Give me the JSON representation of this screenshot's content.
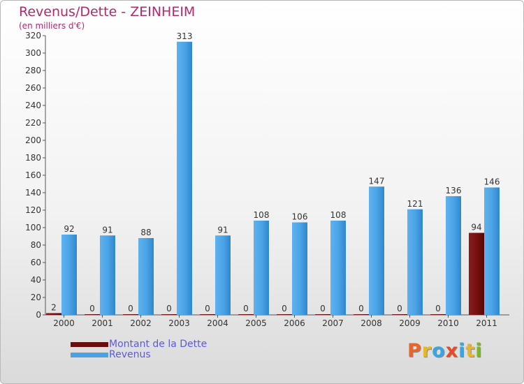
{
  "header": {
    "title": "Revenus/Dette - ZEINHEIM",
    "subtitle": "(en milliers d'€)"
  },
  "legend": {
    "items": [
      {
        "label": "Montant de la Dette",
        "color": "#7a1010"
      },
      {
        "label": "Revenus",
        "color": "#4aa2e6"
      }
    ]
  },
  "logo": {
    "text": "Proxiti",
    "colors": [
      "#e8662a",
      "#e8b62a",
      "#3aa6de",
      "#e84a2a",
      "#3aa6de",
      "#e8b62a",
      "#7ab82a"
    ]
  },
  "chart_data": {
    "type": "bar",
    "title": "Revenus/Dette - ZEINHEIM",
    "subtitle": "(en milliers d'€)",
    "categories": [
      "2000",
      "2001",
      "2002",
      "2003",
      "2004",
      "2005",
      "2006",
      "2007",
      "2008",
      "2009",
      "2010",
      "2011"
    ],
    "series": [
      {
        "name": "Montant de la Dette",
        "color": "#7a1010",
        "values": [
          2,
          0,
          0,
          0,
          0,
          0,
          0,
          0,
          0,
          0,
          0,
          94
        ]
      },
      {
        "name": "Revenus",
        "color": "#4aa2e6",
        "values": [
          92,
          91,
          88,
          313,
          91,
          108,
          106,
          108,
          147,
          121,
          136,
          146
        ]
      }
    ],
    "ylim": [
      0,
      320
    ],
    "yticks": [
      0,
      20,
      40,
      60,
      80,
      100,
      120,
      140,
      160,
      180,
      200,
      220,
      240,
      260,
      280,
      300,
      320
    ],
    "grid": false,
    "legend_position": "bottom-left"
  }
}
